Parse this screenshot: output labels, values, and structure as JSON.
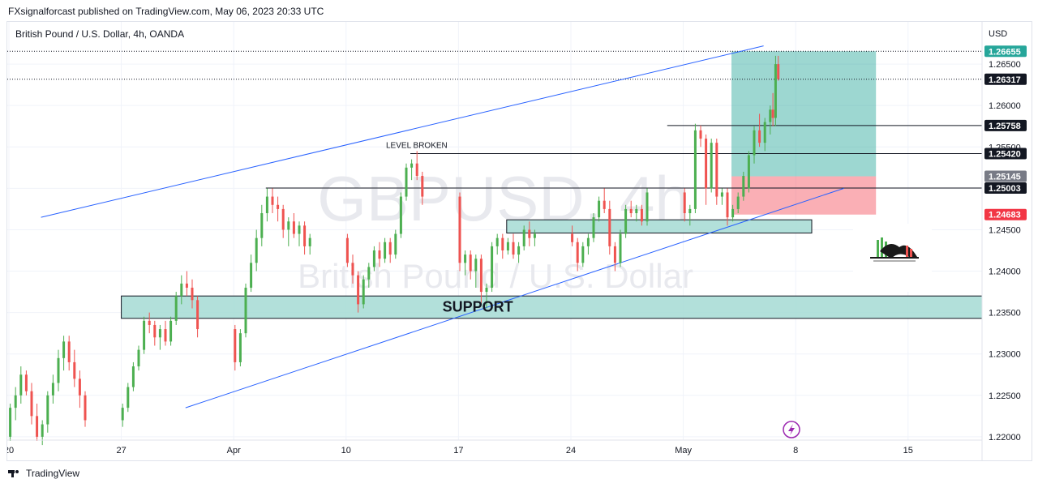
{
  "header": {
    "publisher": "FXsignalforcast published on TradingView.com, May 06, 2023 20:33 UTC"
  },
  "footer": {
    "brand": "TradingView"
  },
  "chart_data": {
    "type": "candlestick",
    "symbol_line": "British Pound / U.S. Dollar, 4h, OANDA",
    "watermark_symbol": "GBPUSD, 4h",
    "watermark_name": "British Pound / U.S. Dollar",
    "currency_label": "USD",
    "y_range": [
      1.2195,
      1.27
    ],
    "y_ticks": [
      "1.22000",
      "1.22500",
      "1.23000",
      "1.23500",
      "1.24000",
      "1.24500",
      "1.25000",
      "1.25500",
      "1.26000",
      "1.26500"
    ],
    "x_ticks": [
      "20",
      "27",
      "Apr",
      "10",
      "17",
      "24",
      "May",
      "8",
      "15"
    ],
    "x_tick_dates": [
      "2023-03-20",
      "2023-03-27",
      "2023-04-03",
      "2023-04-10",
      "2023-04-17",
      "2023-04-24",
      "2023-05-01",
      "2023-05-08",
      "2023-05-15"
    ],
    "price_labels": [
      {
        "value": "1.26655",
        "bg": "#26a69a",
        "fg": "#ffffff"
      },
      {
        "value": "1.26317",
        "bg": "#131722",
        "fg": "#ffffff"
      },
      {
        "value": "1.25758",
        "bg": "#131722",
        "fg": "#ffffff"
      },
      {
        "value": "1.25420",
        "bg": "#131722",
        "fg": "#ffffff"
      },
      {
        "value": "1.25145",
        "bg": "#787b86",
        "fg": "#ffffff"
      },
      {
        "value": "1.25003",
        "bg": "#131722",
        "fg": "#ffffff"
      },
      {
        "value": "1.24683",
        "bg": "#f23645",
        "fg": "#ffffff"
      }
    ],
    "horizontal_levels": [
      {
        "value": 1.25758,
        "from": "2023-04-30",
        "to": "end"
      },
      {
        "value": 1.2542,
        "from": "2023-04-14",
        "to": "end"
      },
      {
        "value": 1.25003,
        "from": "2023-04-05",
        "to": "end"
      }
    ],
    "annotations": [
      {
        "text": "LEVEL BROKEN",
        "date": "2023-04-14",
        "price": 1.2545
      },
      {
        "text": "SUPPORT",
        "date": "2023-04-16",
        "price": 1.2357
      }
    ],
    "zones": [
      {
        "name": "support",
        "from": "2023-03-27",
        "to": "2023-05-20",
        "low": 1.2343,
        "high": 1.237,
        "color": "#a5dbd4"
      },
      {
        "name": "demand",
        "from": "2023-04-20",
        "to": "2023-05-09",
        "low": 1.2446,
        "high": 1.2462,
        "color": "#a5dbd4"
      }
    ],
    "position": {
      "from": "2023-05-04",
      "to": "2023-05-13",
      "target": 1.26655,
      "entry": 1.25145,
      "stop": 1.24683,
      "profit_color": "#26a69a",
      "loss_color": "#f23645"
    },
    "channel_lines": [
      {
        "x1": "2023-03-22",
        "y1": 1.2465,
        "x2": "2023-05-06",
        "y2": 1.2672,
        "color": "#2962ff"
      },
      {
        "x1": "2023-03-31",
        "y1": 1.2235,
        "x2": "2023-05-11",
        "y2": 1.25,
        "color": "#2962ff"
      }
    ],
    "colors": {
      "up": "#4caf50",
      "down": "#ef5350",
      "grid": "#f0f3fa"
    },
    "candles": [
      [
        "2023-03-17T20:00",
        1.2185,
        1.221,
        1.2175,
        1.22
      ],
      [
        "2023-03-20T00:00",
        1.22,
        1.224,
        1.2195,
        1.2235
      ],
      [
        "2023-03-20T08:00",
        1.2235,
        1.226,
        1.222,
        1.225
      ],
      [
        "2023-03-20T16:00",
        1.225,
        1.2285,
        1.224,
        1.2275
      ],
      [
        "2023-03-21T00:00",
        1.2275,
        1.228,
        1.225,
        1.2255
      ],
      [
        "2023-03-21T08:00",
        1.2255,
        1.2265,
        1.2215,
        1.2225
      ],
      [
        "2023-03-21T16:00",
        1.2225,
        1.224,
        1.2195,
        1.22
      ],
      [
        "2023-03-22T00:00",
        1.22,
        1.222,
        1.219,
        1.2215
      ],
      [
        "2023-03-22T08:00",
        1.2215,
        1.2255,
        1.2205,
        1.225
      ],
      [
        "2023-03-22T16:00",
        1.225,
        1.2275,
        1.224,
        1.2265
      ],
      [
        "2023-03-23T00:00",
        1.2265,
        1.2305,
        1.2255,
        1.2295
      ],
      [
        "2023-03-23T08:00",
        1.2295,
        1.2322,
        1.228,
        1.2315
      ],
      [
        "2023-03-23T16:00",
        1.2315,
        1.2322,
        1.228,
        1.229
      ],
      [
        "2023-03-24T00:00",
        1.229,
        1.2305,
        1.226,
        1.227
      ],
      [
        "2023-03-24T08:00",
        1.227,
        1.228,
        1.2235,
        1.225
      ],
      [
        "2023-03-24T16:00",
        1.225,
        1.2255,
        1.2212,
        1.222
      ],
      [
        "2023-03-27T00:00",
        1.222,
        1.224,
        1.2212,
        1.2235
      ],
      [
        "2023-03-27T08:00",
        1.2235,
        1.2265,
        1.223,
        1.226
      ],
      [
        "2023-03-27T16:00",
        1.226,
        1.229,
        1.2255,
        1.2285
      ],
      [
        "2023-03-28T00:00",
        1.2285,
        1.231,
        1.228,
        1.2305
      ],
      [
        "2023-03-28T08:00",
        1.2305,
        1.2345,
        1.23,
        1.234
      ],
      [
        "2023-03-28T16:00",
        1.234,
        1.235,
        1.2325,
        1.2335
      ],
      [
        "2023-03-29T00:00",
        1.2335,
        1.234,
        1.231,
        1.232
      ],
      [
        "2023-03-29T08:00",
        1.232,
        1.2335,
        1.2305,
        1.233
      ],
      [
        "2023-03-29T16:00",
        1.233,
        1.234,
        1.231,
        1.2315
      ],
      [
        "2023-03-30T00:00",
        1.2315,
        1.2345,
        1.231,
        1.234
      ],
      [
        "2023-03-30T08:00",
        1.234,
        1.2375,
        1.2335,
        1.237
      ],
      [
        "2023-03-30T16:00",
        1.237,
        1.2395,
        1.236,
        1.2385
      ],
      [
        "2023-03-31T00:00",
        1.2385,
        1.24,
        1.237,
        1.238
      ],
      [
        "2023-03-31T08:00",
        1.238,
        1.239,
        1.2355,
        1.2365
      ],
      [
        "2023-03-31T16:00",
        1.2365,
        1.237,
        1.232,
        1.233
      ],
      [
        "2023-04-03T00:00",
        1.233,
        1.2335,
        1.228,
        1.229
      ],
      [
        "2023-04-03T08:00",
        1.229,
        1.233,
        1.2285,
        1.2325
      ],
      [
        "2023-04-03T16:00",
        1.2325,
        1.2385,
        1.232,
        1.238
      ],
      [
        "2023-04-04T00:00",
        1.238,
        1.242,
        1.2375,
        1.241
      ],
      [
        "2023-04-04T08:00",
        1.241,
        1.245,
        1.24,
        1.244
      ],
      [
        "2023-04-04T16:00",
        1.244,
        1.248,
        1.243,
        1.247
      ],
      [
        "2023-04-05T00:00",
        1.247,
        1.25,
        1.246,
        1.249
      ],
      [
        "2023-04-05T08:00",
        1.249,
        1.25,
        1.247,
        1.248
      ],
      [
        "2023-04-05T16:00",
        1.248,
        1.249,
        1.246,
        1.2475
      ],
      [
        "2023-04-06T00:00",
        1.2475,
        1.248,
        1.244,
        1.245
      ],
      [
        "2023-04-06T08:00",
        1.245,
        1.2465,
        1.243,
        1.246
      ],
      [
        "2023-04-06T16:00",
        1.246,
        1.247,
        1.244,
        1.2445
      ],
      [
        "2023-04-07T00:00",
        1.2445,
        1.246,
        1.243,
        1.2455
      ],
      [
        "2023-04-07T08:00",
        1.2455,
        1.246,
        1.242,
        1.243
      ],
      [
        "2023-04-07T16:00",
        1.243,
        1.2445,
        1.242,
        1.244
      ],
      [
        "2023-04-10T00:00",
        1.244,
        1.2445,
        1.2405,
        1.241
      ],
      [
        "2023-04-10T08:00",
        1.241,
        1.242,
        1.2385,
        1.2395
      ],
      [
        "2023-04-10T16:00",
        1.2395,
        1.24,
        1.235,
        1.236
      ],
      [
        "2023-04-11T00:00",
        1.236,
        1.2395,
        1.2355,
        1.239
      ],
      [
        "2023-04-11T08:00",
        1.239,
        1.241,
        1.238,
        1.2405
      ],
      [
        "2023-04-11T16:00",
        1.2405,
        1.243,
        1.24,
        1.2425
      ],
      [
        "2023-04-12T00:00",
        1.2425,
        1.2435,
        1.2405,
        1.2415
      ],
      [
        "2023-04-12T08:00",
        1.2415,
        1.244,
        1.241,
        1.2435
      ],
      [
        "2023-04-12T16:00",
        1.2435,
        1.244,
        1.241,
        1.242
      ],
      [
        "2023-04-13T00:00",
        1.242,
        1.245,
        1.2415,
        1.2445
      ],
      [
        "2023-04-13T08:00",
        1.2445,
        1.2495,
        1.244,
        1.249
      ],
      [
        "2023-04-13T16:00",
        1.249,
        1.253,
        1.2485,
        1.2525
      ],
      [
        "2023-04-14T00:00",
        1.2525,
        1.2535,
        1.251,
        1.253
      ],
      [
        "2023-04-14T08:00",
        1.253,
        1.2545,
        1.251,
        1.2515
      ],
      [
        "2023-04-14T16:00",
        1.2515,
        1.252,
        1.248,
        1.249
      ],
      [
        "2023-04-17T00:00",
        1.249,
        1.2495,
        1.24,
        1.241
      ],
      [
        "2023-04-17T08:00",
        1.241,
        1.2425,
        1.2395,
        1.242
      ],
      [
        "2023-04-17T16:00",
        1.242,
        1.2425,
        1.239,
        1.24
      ],
      [
        "2023-04-18T00:00",
        1.24,
        1.242,
        1.238,
        1.2415
      ],
      [
        "2023-04-18T08:00",
        1.2415,
        1.242,
        1.236,
        1.2375
      ],
      [
        "2023-04-18T16:00",
        1.2375,
        1.2385,
        1.2355,
        1.238
      ],
      [
        "2023-04-19T00:00",
        1.238,
        1.2435,
        1.2375,
        1.243
      ],
      [
        "2023-04-19T08:00",
        1.243,
        1.2445,
        1.242,
        1.244
      ],
      [
        "2023-04-19T16:00",
        1.244,
        1.2445,
        1.2415,
        1.2425
      ],
      [
        "2023-04-20T00:00",
        1.2425,
        1.244,
        1.242,
        1.2435
      ],
      [
        "2023-04-20T08:00",
        1.2435,
        1.2445,
        1.2415,
        1.242
      ],
      [
        "2023-04-20T16:00",
        1.242,
        1.2435,
        1.241,
        1.243
      ],
      [
        "2023-04-21T00:00",
        1.243,
        1.2455,
        1.2425,
        1.245
      ],
      [
        "2023-04-21T08:00",
        1.245,
        1.246,
        1.243,
        1.244
      ],
      [
        "2023-04-21T16:00",
        1.244,
        1.245,
        1.243,
        1.2445
      ],
      [
        "2023-04-24T00:00",
        1.2445,
        1.2455,
        1.243,
        1.2435
      ],
      [
        "2023-04-24T08:00",
        1.2435,
        1.244,
        1.24,
        1.241
      ],
      [
        "2023-04-24T16:00",
        1.241,
        1.2435,
        1.2405,
        1.243
      ],
      [
        "2023-04-25T00:00",
        1.243,
        1.2445,
        1.242,
        1.244
      ],
      [
        "2023-04-25T08:00",
        1.244,
        1.247,
        1.2435,
        1.2465
      ],
      [
        "2023-04-25T16:00",
        1.2465,
        1.249,
        1.246,
        1.2485
      ],
      [
        "2023-04-26T00:00",
        1.2485,
        1.25,
        1.247,
        1.2475
      ],
      [
        "2023-04-26T08:00",
        1.2475,
        1.2485,
        1.242,
        1.243
      ],
      [
        "2023-04-26T16:00",
        1.243,
        1.2435,
        1.24,
        1.241
      ],
      [
        "2023-04-27T00:00",
        1.241,
        1.245,
        1.2405,
        1.2445
      ],
      [
        "2023-04-27T08:00",
        1.2445,
        1.248,
        1.244,
        1.2475
      ],
      [
        "2023-04-27T16:00",
        1.2475,
        1.2485,
        1.2465,
        1.247
      ],
      [
        "2023-04-28T00:00",
        1.247,
        1.248,
        1.246,
        1.2475
      ],
      [
        "2023-04-28T08:00",
        1.2475,
        1.248,
        1.2455,
        1.246
      ],
      [
        "2023-04-28T16:00",
        1.246,
        1.25,
        1.2455,
        1.2495
      ],
      [
        "2023-05-01T00:00",
        1.2495,
        1.25,
        1.246,
        1.247
      ],
      [
        "2023-05-01T08:00",
        1.247,
        1.248,
        1.2455,
        1.2475
      ],
      [
        "2023-05-01T16:00",
        1.2475,
        1.2578,
        1.247,
        1.257
      ],
      [
        "2023-05-02T00:00",
        1.257,
        1.2576,
        1.255,
        1.256
      ],
      [
        "2023-05-02T08:00",
        1.256,
        1.2565,
        1.248,
        1.25
      ],
      [
        "2023-05-02T16:00",
        1.25,
        1.256,
        1.2495,
        1.2555
      ],
      [
        "2023-05-03T00:00",
        1.2555,
        1.256,
        1.248,
        1.249
      ],
      [
        "2023-05-03T08:00",
        1.249,
        1.25,
        1.248,
        1.2495
      ],
      [
        "2023-05-03T16:00",
        1.2495,
        1.25,
        1.2455,
        1.2465
      ],
      [
        "2023-05-04T00:00",
        1.2465,
        1.248,
        1.246,
        1.2475
      ],
      [
        "2023-05-04T08:00",
        1.2475,
        1.2495,
        1.247,
        1.249
      ],
      [
        "2023-05-04T16:00",
        1.249,
        1.252,
        1.2485,
        1.2515
      ],
      [
        "2023-05-05T00:00",
        1.25,
        1.2545,
        1.2495,
        1.254
      ],
      [
        "2023-05-05T08:00",
        1.254,
        1.2575,
        1.253,
        1.257
      ],
      [
        "2023-05-05T16:00",
        1.257,
        1.259,
        1.255,
        1.2555
      ],
      [
        "2023-05-06T00:00",
        1.2555,
        1.2585,
        1.2545,
        1.258
      ],
      [
        "2023-05-06T08:00",
        1.258,
        1.26,
        1.2565,
        1.2595
      ],
      [
        "2023-05-06T12:00",
        1.2595,
        1.2615,
        1.2575,
        1.2585
      ],
      [
        "2023-05-06T16:00",
        1.2585,
        1.266,
        1.2575,
        1.265
      ],
      [
        "2023-05-06T20:00",
        1.265,
        1.266,
        1.263,
        1.2632
      ]
    ]
  }
}
